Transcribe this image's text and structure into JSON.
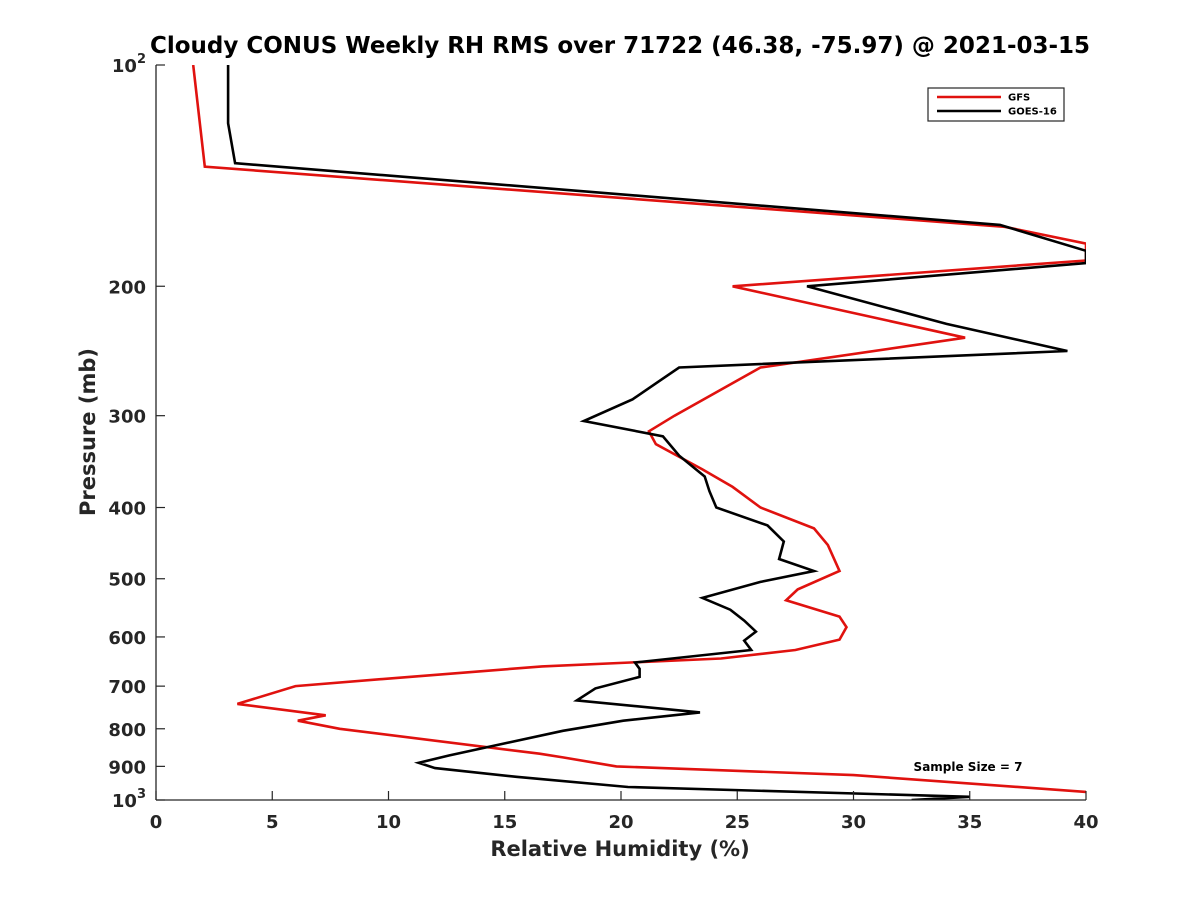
{
  "chart_data": {
    "type": "line",
    "title": "Cloudy CONUS Weekly RH RMS over 71722 (46.38, -75.97) @ 2021-03-15",
    "xlabel": "Relative Humidity (%)",
    "ylabel": "Pressure (mb)",
    "xlim": [
      0,
      40
    ],
    "ylim": [
      100,
      1000
    ],
    "y_scale": "log",
    "y_reversed": true,
    "grid": false,
    "x_ticks": [
      0,
      5,
      10,
      15,
      20,
      25,
      30,
      35,
      40
    ],
    "x_tick_labels": [
      "0",
      "5",
      "10",
      "15",
      "20",
      "25",
      "30",
      "35",
      "40"
    ],
    "y_ticks": [
      {
        "value": 100,
        "base": "10",
        "exp": "2"
      },
      {
        "value": 200,
        "label": "200"
      },
      {
        "value": 300,
        "label": "300"
      },
      {
        "value": 400,
        "label": "400"
      },
      {
        "value": 500,
        "label": "500"
      },
      {
        "value": 600,
        "label": "600"
      },
      {
        "value": 700,
        "label": "700"
      },
      {
        "value": 800,
        "label": "800"
      },
      {
        "value": 900,
        "label": "900"
      },
      {
        "value": 1000,
        "base": "10",
        "exp": "3"
      }
    ],
    "legend": {
      "position": "top-right"
    },
    "annotation": "Sample Size = 7",
    "series": [
      {
        "name": "GFS",
        "color": "#e0120f",
        "points": [
          [
            1.6,
            100
          ],
          [
            2.1,
            137.5
          ],
          [
            36.5,
            166
          ],
          [
            40,
            175
          ],
          [
            40,
            184.5
          ],
          [
            24.8,
            200
          ],
          [
            34.8,
            235
          ],
          [
            26,
            258
          ],
          [
            22.3,
            300
          ],
          [
            21.2,
            315
          ],
          [
            21.5,
            328
          ],
          [
            23.5,
            355
          ],
          [
            24.8,
            375
          ],
          [
            26,
            400
          ],
          [
            28.3,
            427
          ],
          [
            28.9,
            450
          ],
          [
            29.4,
            488
          ],
          [
            27.6,
            517
          ],
          [
            27.1,
            535
          ],
          [
            29.4,
            563
          ],
          [
            29.7,
            582
          ],
          [
            29.4,
            605
          ],
          [
            27.5,
            625
          ],
          [
            24.3,
            642
          ],
          [
            16.6,
            658
          ],
          [
            10.9,
            680
          ],
          [
            6,
            700
          ],
          [
            3.5,
            740
          ],
          [
            7.3,
            767
          ],
          [
            6.1,
            780
          ],
          [
            7.9,
            800
          ],
          [
            16.5,
            865
          ],
          [
            17.5,
            875
          ],
          [
            19.8,
            900
          ],
          [
            30,
            925
          ],
          [
            40,
            975
          ]
        ]
      },
      {
        "name": "GOES-16",
        "color": "#000000",
        "points": [
          [
            3.1,
            100
          ],
          [
            3.1,
            120
          ],
          [
            3.4,
            136
          ],
          [
            36.3,
            165
          ],
          [
            40,
            179
          ],
          [
            40,
            186
          ],
          [
            28,
            200
          ],
          [
            34,
            225
          ],
          [
            39.2,
            245
          ],
          [
            22.5,
            258
          ],
          [
            20.5,
            285
          ],
          [
            18.4,
            305
          ],
          [
            21.8,
            320
          ],
          [
            22.5,
            340
          ],
          [
            23.6,
            363
          ],
          [
            23.8,
            380
          ],
          [
            24.1,
            400
          ],
          [
            26.3,
            423
          ],
          [
            27,
            445
          ],
          [
            26.8,
            470
          ],
          [
            28.3,
            488
          ],
          [
            26,
            505
          ],
          [
            23.5,
            531
          ],
          [
            24.7,
            551
          ],
          [
            25.3,
            570
          ],
          [
            25.8,
            590
          ],
          [
            25.3,
            607
          ],
          [
            25.6,
            625
          ],
          [
            20.6,
            650
          ],
          [
            20.8,
            663
          ],
          [
            20.8,
            680
          ],
          [
            18.9,
            705
          ],
          [
            18.1,
            732
          ],
          [
            23.4,
            760
          ],
          [
            20.1,
            780
          ],
          [
            17.5,
            805
          ],
          [
            12.6,
            870
          ],
          [
            11.3,
            890
          ],
          [
            12,
            905
          ],
          [
            15.5,
            930
          ],
          [
            20.3,
            960
          ],
          [
            35,
            990
          ],
          [
            32.5,
            1000
          ]
        ]
      }
    ]
  }
}
